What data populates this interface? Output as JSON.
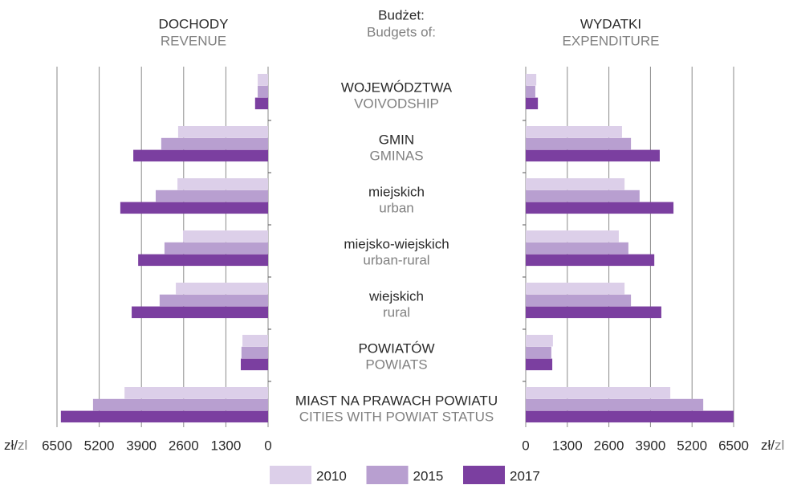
{
  "chart_data": [
    {
      "type": "hbar",
      "title": "DOCHODY",
      "subtitle": "REVENUE",
      "xreverse": true,
      "xlim": [
        0,
        6500
      ],
      "xticks": [
        0,
        1300,
        2600,
        3900,
        5200,
        6500
      ],
      "grid": true,
      "series": [
        {
          "name": "2010",
          "color": "#dccfe9",
          "values": [
            320,
            2770,
            2790,
            2620,
            2840,
            790,
            4420
          ]
        },
        {
          "name": "2015",
          "color": "#b89fd0",
          "values": [
            320,
            3290,
            3460,
            3190,
            3340,
            820,
            5390
          ]
        },
        {
          "name": "2017",
          "color": "#7b3fa0",
          "values": [
            400,
            4150,
            4550,
            4000,
            4200,
            840,
            6380
          ]
        }
      ]
    },
    {
      "type": "hbar",
      "title": "WYDATKI",
      "subtitle": "EXPENDITURE",
      "xreverse": false,
      "xlim": [
        0,
        6500
      ],
      "xticks": [
        0,
        1300,
        2600,
        3900,
        5200,
        6500
      ],
      "grid": true,
      "series": [
        {
          "name": "2010",
          "color": "#dccfe9",
          "values": [
            330,
            3010,
            3090,
            2910,
            3090,
            850,
            4520
          ]
        },
        {
          "name": "2015",
          "color": "#b89fd0",
          "values": [
            300,
            3290,
            3560,
            3210,
            3290,
            800,
            5550
          ]
        },
        {
          "name": "2017",
          "color": "#7b3fa0",
          "values": [
            380,
            4190,
            4620,
            4020,
            4240,
            830,
            6500
          ]
        }
      ]
    }
  ],
  "center": {
    "title": "Budżet:",
    "subtitle": "Budgets of:",
    "categories": [
      "WOJEWÓDZTWA",
      "GMIN",
      "miejskich",
      "miejsko-wiejskich",
      "wiejskich",
      "POWIATÓW",
      "MIAST NA PRAWACH POWIATU"
    ],
    "categories_en": [
      "VOIVODSHIP",
      "GMINAS",
      "urban",
      "urban-rural",
      "rural",
      "POWIATS",
      "CITIES WITH POWIAT STATUS"
    ]
  },
  "unit": {
    "pl": "zł/",
    "en": "zl"
  }
}
